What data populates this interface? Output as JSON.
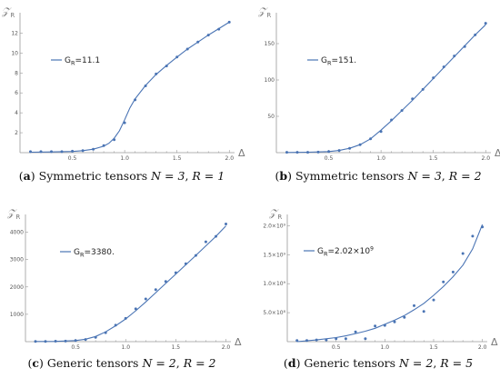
{
  "chart_data": [
    {
      "type": "line",
      "title": "",
      "caption": {
        "letter": "a",
        "text": "Symmetric tensors",
        "eq1": "N = 3",
        "eq2": "R = 1"
      },
      "xlabel": "Δ",
      "ylabel": "𝒵",
      "ylabel_sub": "R",
      "xlim": [
        0,
        2.05
      ],
      "ylim": [
        0,
        13.5
      ],
      "xticks": [
        "0.5",
        "1.0",
        "1.5",
        "2.0"
      ],
      "xtick_values": [
        0.5,
        1.0,
        1.5,
        2.0
      ],
      "yticks": [
        "2",
        "4",
        "6",
        "8",
        "10",
        "12"
      ],
      "ytick_values": [
        2,
        4,
        6,
        8,
        10,
        12
      ],
      "legend": {
        "label_main": "G",
        "label_sub": "R",
        "label_value": "=11.1",
        "label_exp": ""
      },
      "series": [
        {
          "kind": "points",
          "x": [
            0.1,
            0.2,
            0.3,
            0.4,
            0.5,
            0.6,
            0.7,
            0.8,
            0.9,
            1.0,
            1.1,
            1.2,
            1.3,
            1.4,
            1.5,
            1.6,
            1.7,
            1.8,
            1.9,
            2.0
          ],
          "y": [
            0.1,
            0.1,
            0.1,
            0.1,
            0.15,
            0.2,
            0.35,
            0.7,
            1.3,
            3.0,
            5.3,
            6.7,
            7.9,
            8.7,
            9.6,
            10.4,
            11.1,
            11.8,
            12.4,
            13.1
          ]
        },
        {
          "kind": "line",
          "x": [
            0.1,
            0.3,
            0.5,
            0.6,
            0.7,
            0.8,
            0.85,
            0.9,
            0.95,
            1.0,
            1.05,
            1.1,
            1.2,
            1.3,
            1.4,
            1.5,
            1.6,
            1.7,
            1.8,
            1.9,
            2.0
          ],
          "y": [
            0.05,
            0.07,
            0.12,
            0.2,
            0.35,
            0.65,
            0.95,
            1.45,
            2.2,
            3.3,
            4.5,
            5.4,
            6.75,
            7.85,
            8.75,
            9.6,
            10.4,
            11.1,
            11.8,
            12.45,
            13.1
          ]
        }
      ],
      "color": "#4a74b4"
    },
    {
      "type": "line",
      "title": "",
      "caption": {
        "letter": "b",
        "text": "Symmetric tensors",
        "eq1": "N = 3",
        "eq2": "R = 2"
      },
      "xlabel": "Δ",
      "ylabel": "𝒵",
      "ylabel_sub": "R",
      "xlim": [
        0,
        2.05
      ],
      "ylim": [
        0,
        185
      ],
      "xticks": [
        "0.5",
        "1.0",
        "1.5",
        "2.0"
      ],
      "xtick_values": [
        0.5,
        1.0,
        1.5,
        2.0
      ],
      "yticks": [
        "50",
        "100",
        "150"
      ],
      "ytick_values": [
        50,
        100,
        150
      ],
      "legend": {
        "label_main": "G",
        "label_sub": "R",
        "label_value": "=151.",
        "label_exp": ""
      },
      "series": [
        {
          "kind": "points",
          "x": [
            0.1,
            0.2,
            0.3,
            0.4,
            0.5,
            0.6,
            0.7,
            0.8,
            0.9,
            1.0,
            1.1,
            1.2,
            1.3,
            1.4,
            1.5,
            1.6,
            1.7,
            1.8,
            1.9,
            2.0
          ],
          "y": [
            0.5,
            0.5,
            0.5,
            0.8,
            1.5,
            3,
            6,
            11,
            19,
            29,
            45,
            58,
            74,
            87,
            103,
            118,
            133,
            146,
            162,
            178
          ]
        },
        {
          "kind": "line",
          "x": [
            0.1,
            0.3,
            0.5,
            0.6,
            0.7,
            0.8,
            0.9,
            1.0,
            1.1,
            1.2,
            1.3,
            1.4,
            1.5,
            1.6,
            1.7,
            1.8,
            1.9,
            2.0
          ],
          "y": [
            0.3,
            0.6,
            1.5,
            3,
            6,
            11,
            19,
            31,
            44,
            58,
            72,
            87,
            102,
            117,
            132,
            147,
            162,
            176
          ]
        }
      ],
      "color": "#4a74b4"
    },
    {
      "type": "line",
      "title": "",
      "caption": {
        "letter": "c",
        "text": "Generic tensors",
        "eq1": "N = 2",
        "eq2": "R = 2"
      },
      "xlabel": "Δ",
      "ylabel": "𝒵",
      "ylabel_sub": "R",
      "xlim": [
        0,
        2.05
      ],
      "ylim": [
        0,
        4450
      ],
      "xticks": [
        "0.5",
        "1.0",
        "1.5",
        "2.0"
      ],
      "xtick_values": [
        0.5,
        1.0,
        1.5,
        2.0
      ],
      "yticks": [
        "1000",
        "2000",
        "3000",
        "4000"
      ],
      "ytick_values": [
        1000,
        2000,
        3000,
        4000
      ],
      "legend": {
        "label_main": "G",
        "label_sub": "R",
        "label_value": "=3380.",
        "label_exp": ""
      },
      "series": [
        {
          "kind": "points",
          "x": [
            0.1,
            0.2,
            0.3,
            0.4,
            0.5,
            0.6,
            0.7,
            0.8,
            0.9,
            1.0,
            1.1,
            1.2,
            1.3,
            1.4,
            1.5,
            1.6,
            1.7,
            1.8,
            1.9,
            2.0
          ],
          "y": [
            10,
            10,
            15,
            20,
            40,
            80,
            160,
            330,
            600,
            850,
            1200,
            1560,
            1900,
            2200,
            2520,
            2850,
            3150,
            3650,
            3850,
            4300
          ]
        },
        {
          "kind": "line",
          "x": [
            0.1,
            0.3,
            0.5,
            0.6,
            0.7,
            0.8,
            0.9,
            1.0,
            1.1,
            1.2,
            1.3,
            1.4,
            1.5,
            1.6,
            1.7,
            1.8,
            1.9,
            2.0
          ],
          "y": [
            5,
            10,
            40,
            90,
            190,
            360,
            580,
            830,
            1130,
            1450,
            1790,
            2130,
            2470,
            2810,
            3150,
            3500,
            3850,
            4230
          ]
        }
      ],
      "color": "#4a74b4"
    },
    {
      "type": "line",
      "title": "",
      "caption": {
        "letter": "d",
        "text": "Generic tensors",
        "eq1": "N = 2",
        "eq2": "R = 5"
      },
      "xlabel": "Δ",
      "ylabel": "𝒵",
      "ylabel_sub": "R",
      "xlim": [
        0,
        2.05
      ],
      "ylim": [
        0,
        2.1
      ],
      "ytick_unit": "×10⁹",
      "xticks": [
        "0.5",
        "1.0",
        "1.5",
        "2.0"
      ],
      "xtick_values": [
        0.5,
        1.0,
        1.5,
        2.0
      ],
      "yticks": [
        "5.0×10⁸",
        "1.0×10⁹",
        "1.5×10⁹",
        "2.0×10⁹"
      ],
      "ytick_values": [
        0.5,
        1.0,
        1.5,
        2.0
      ],
      "legend": {
        "label_main": "G",
        "label_sub": "R",
        "label_value": "=2.02×10",
        "label_exp": "9"
      },
      "series": [
        {
          "kind": "points",
          "x": [
            0.1,
            0.2,
            0.3,
            0.4,
            0.5,
            0.6,
            0.7,
            0.8,
            0.9,
            1.0,
            1.1,
            1.2,
            1.3,
            1.4,
            1.5,
            1.6,
            1.7,
            1.8,
            1.9,
            2.0
          ],
          "y": [
            0.02,
            0.02,
            0.03,
            0.03,
            0.05,
            0.05,
            0.17,
            0.05,
            0.27,
            0.28,
            0.34,
            0.42,
            0.62,
            0.52,
            0.72,
            1.03,
            1.2,
            1.52,
            1.82,
            1.98
          ]
        },
        {
          "kind": "line",
          "x": [
            0.1,
            0.3,
            0.5,
            0.6,
            0.7,
            0.8,
            0.9,
            1.0,
            1.1,
            1.2,
            1.3,
            1.4,
            1.5,
            1.6,
            1.7,
            1.8,
            1.9,
            2.0
          ],
          "y": [
            0.0,
            0.03,
            0.07,
            0.1,
            0.14,
            0.18,
            0.23,
            0.3,
            0.37,
            0.45,
            0.55,
            0.66,
            0.8,
            0.95,
            1.12,
            1.32,
            1.6,
            2.02
          ]
        }
      ],
      "color": "#4a74b4"
    }
  ]
}
